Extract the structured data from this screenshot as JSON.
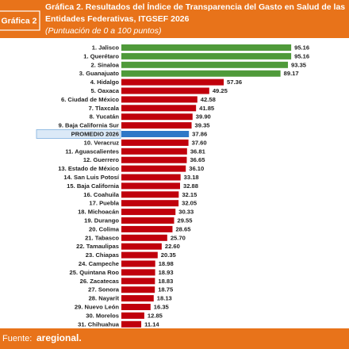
{
  "chart_data": {
    "type": "bar",
    "orientation": "horizontal",
    "chart_label": "Gráfica 2",
    "title": [
      "Gráfica 2. Resultados del Índice de Transparencia del Gasto en Salud de las",
      "Entidades Federativas, ITGSEF 2026"
    ],
    "subtitle": "(Puntuación de 0 a 100 puntos)",
    "source_label": "Fuente:",
    "source": "aregional.",
    "categories": [
      "1. Jalisco",
      "1. Querétaro",
      "2. Sinaloa",
      "3. Guanajuato",
      "4. Hidalgo",
      "5. Oaxaca",
      "6. Ciudad de México",
      "7. Tlaxcala",
      "8. Yucatán",
      "9. Baja California Sur",
      "PROMEDIO 2026",
      "10. Veracruz",
      "11. Aguascalientes",
      "12. Guerrero",
      "13. Estado de México",
      "14. San Luis Potosí",
      "15. Baja California",
      "16. Coahuila",
      "17. Puebla",
      "18. Michoacán",
      "19. Durango",
      "20. Colima",
      "21. Tabasco",
      "22. Tamaulipas",
      "23. Chiapas",
      "24. Campeche",
      "25. Quintana Roo",
      "26. Zacatecas",
      "27. Sonora",
      "28. Nayarit",
      "29. Nuevo León",
      "30. Morelos",
      "31. Chihuahua"
    ],
    "values": [
      95.16,
      95.16,
      93.35,
      89.17,
      57.36,
      49.25,
      42.58,
      41.85,
      39.9,
      39.35,
      37.86,
      37.6,
      36.81,
      36.65,
      36.1,
      33.18,
      32.88,
      32.15,
      32.05,
      30.33,
      29.55,
      28.65,
      25.7,
      22.6,
      20.35,
      18.98,
      18.93,
      18.83,
      18.75,
      18.13,
      16.35,
      12.85,
      11.14
    ],
    "value_labels": [
      "95.16",
      "95.16",
      "93.35",
      "89.17",
      "57.36",
      "49.25",
      "42.58",
      "41.85",
      "39.90",
      "39.35",
      "37.86",
      "37.60",
      "36.81",
      "36.65",
      "36.10",
      "33.18",
      "32.88",
      "32.15",
      "32.05",
      "30.33",
      "29.55",
      "28.65",
      "25.70",
      "22.60",
      "20.35",
      "18.98",
      "18.93",
      "18.83",
      "18.75",
      "18.13",
      "16.35",
      "12.85",
      "11.14"
    ],
    "colors": [
      "#4f9a3a",
      "#4f9a3a",
      "#4f9a3a",
      "#4f9a3a",
      "#c0000c",
      "#c0000c",
      "#c0000c",
      "#c0000c",
      "#c0000c",
      "#c0000c",
      "#2e78c7",
      "#c0000c",
      "#c0000c",
      "#c0000c",
      "#c0000c",
      "#c0000c",
      "#c0000c",
      "#c0000c",
      "#c0000c",
      "#c0000c",
      "#c0000c",
      "#c0000c",
      "#c0000c",
      "#c0000c",
      "#c0000c",
      "#c0000c",
      "#c0000c",
      "#c0000c",
      "#c0000c",
      "#c0000c",
      "#c0000c",
      "#c0000c",
      "#c0000c"
    ],
    "highlight": "PROMEDIO 2026",
    "xlim": [
      0,
      100
    ]
  }
}
